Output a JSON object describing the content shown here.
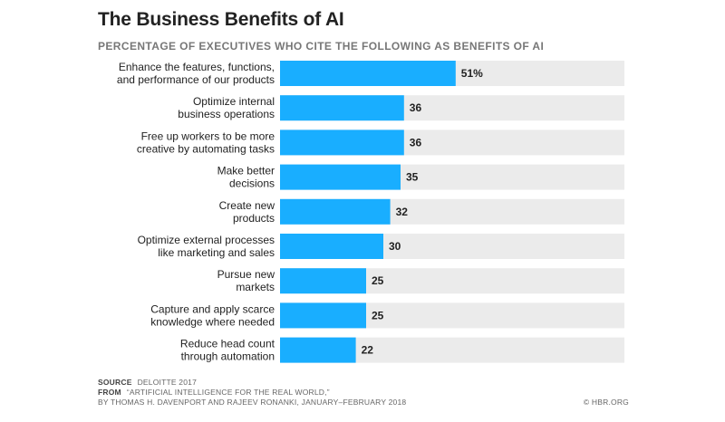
{
  "chart_data": {
    "type": "bar",
    "orientation": "horizontal",
    "title": "The Business Benefits of AI",
    "subtitle": "PERCENTAGE OF EXECUTIVES WHO CITE THE FOLLOWING AS BENEFITS OF AI",
    "categories": [
      [
        "Enhance the features, functions,",
        "and performance of our products"
      ],
      [
        "Optimize internal",
        "business operations"
      ],
      [
        "Free up workers to be more",
        "creative by automating tasks"
      ],
      [
        "Make better",
        "decisions"
      ],
      [
        "Create new",
        "products"
      ],
      [
        "Optimize external processes",
        "like marketing and sales"
      ],
      [
        "Pursue new",
        "markets"
      ],
      [
        "Capture and apply scarce",
        "knowledge where needed"
      ],
      [
        "Reduce head count",
        "through automation"
      ]
    ],
    "values": [
      51,
      36,
      36,
      35,
      32,
      30,
      25,
      25,
      22
    ],
    "value_labels": [
      "51%",
      "36",
      "36",
      "35",
      "32",
      "30",
      "25",
      "25",
      "22"
    ],
    "xlim": [
      0,
      100
    ],
    "grid": false,
    "bar_color": "#19aeff",
    "track_color": "#ebebeb"
  },
  "footer": {
    "source_key": "SOURCE",
    "source_value": "DELOITTE 2017",
    "from_key": "FROM",
    "from_value": "“ARTIFICIAL INTELLIGENCE FOR THE REAL WORLD,”",
    "byline": "BY THOMAS H. DAVENPORT AND RAJEEV RONANKI, JANUARY–FEBRUARY 2018",
    "credit": "© HBR.ORG"
  }
}
